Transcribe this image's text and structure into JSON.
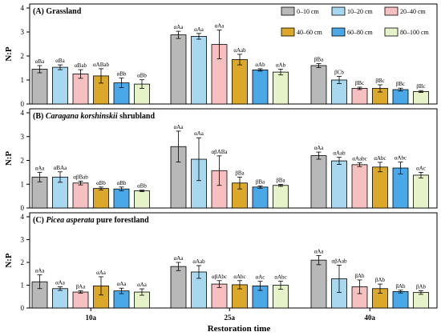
{
  "colors": {
    "0–10 cm": "#b8b8b8",
    "10–20 cm": "#a8d8f0",
    "20–40 cm": "#f7c0c0",
    "40–60 cm": "#dba829",
    "60–80 cm": "#4aa8e8",
    "80–100 cm": "#e6f2c8"
  },
  "chart_data": {
    "type": "bar",
    "xlabel": "Restoration time",
    "ylabel": "N:P",
    "categories": [
      "10a",
      "25a",
      "40a"
    ],
    "legend": [
      "0–10 cm",
      "10–20 cm",
      "20–40 cm",
      "40–60 cm",
      "60–80 cm",
      "80–100 cm"
    ],
    "legend_position": "top-right (panel A)",
    "ylim": [
      0,
      4
    ],
    "yticks": [
      0,
      1,
      2,
      3,
      4
    ],
    "grid": false,
    "panels": [
      {
        "label": "(A)",
        "title": "Grassland",
        "italic": "",
        "series": [
          {
            "name": "0–10 cm",
            "values": [
              1.45,
              2.88,
              1.6
            ],
            "errors": [
              0.15,
              0.15,
              0.08
            ],
            "labels": [
              "αBa",
              "αAa",
              "βBa"
            ]
          },
          {
            "name": "10–20 cm",
            "values": [
              1.53,
              2.82,
              1.0
            ],
            "errors": [
              0.1,
              0.12,
              0.15
            ],
            "labels": [
              "αBa",
              "αAa",
              "βCb"
            ]
          },
          {
            "name": "20–40 cm",
            "values": [
              1.25,
              2.48,
              0.65
            ],
            "errors": [
              0.18,
              0.6,
              0.05
            ],
            "labels": [
              "αBab",
              "αAa",
              "βBc"
            ]
          },
          {
            "name": "40–60 cm",
            "values": [
              1.17,
              1.85,
              0.65
            ],
            "errors": [
              0.3,
              0.22,
              0.15
            ],
            "labels": [
              "αABab",
              "αAab",
              "βBc"
            ]
          },
          {
            "name": "60–80 cm",
            "values": [
              0.88,
              1.42,
              0.6
            ],
            "errors": [
              0.2,
              0.05,
              0.06
            ],
            "labels": [
              "αBb",
              "αAb",
              "βBc"
            ]
          },
          {
            "name": "80–100 cm",
            "values": [
              0.83,
              1.33,
              0.52
            ],
            "errors": [
              0.18,
              0.12,
              0.04
            ],
            "labels": [
              "αBb",
              "αAb",
              "βBc"
            ]
          }
        ]
      },
      {
        "label": "(B)",
        "title": "shrubland",
        "italic": "Caragana korshinskii",
        "series": [
          {
            "name": "0–10 cm",
            "values": [
              1.3,
              2.58,
              2.2
            ],
            "errors": [
              0.2,
              0.65,
              0.15
            ],
            "labels": [
              "αAa",
              "αAa",
              "αAa"
            ]
          },
          {
            "name": "10–20 cm",
            "values": [
              1.3,
              2.05,
              1.98
            ],
            "errors": [
              0.22,
              0.9,
              0.15
            ],
            "labels": [
              "αBAa",
              "αAa",
              "αAab"
            ]
          },
          {
            "name": "20–40 cm",
            "values": [
              1.05,
              1.57,
              1.82
            ],
            "errors": [
              0.08,
              0.62,
              0.08
            ],
            "labels": [
              "αβBab",
              "αβABa",
              "αAabc"
            ]
          },
          {
            "name": "40–60 cm",
            "values": [
              0.82,
              1.05,
              1.72
            ],
            "errors": [
              0.06,
              0.25,
              0.2
            ],
            "labels": [
              "αBb",
              "βBa",
              "αAbc"
            ]
          },
          {
            "name": "60–80 cm",
            "values": [
              0.8,
              0.88,
              1.68
            ],
            "errors": [
              0.08,
              0.05,
              0.25
            ],
            "labels": [
              "αBb",
              "βBa",
              "αAbc"
            ]
          },
          {
            "name": "80–100 cm",
            "values": [
              0.72,
              0.95,
              1.38
            ],
            "errors": [
              0.03,
              0.04,
              0.12
            ],
            "labels": [
              "αBb",
              "βBa",
              "αAc"
            ]
          }
        ]
      },
      {
        "label": "(C)",
        "title": "pure forestland",
        "italic": "Picea asperata",
        "series": [
          {
            "name": "0–10 cm",
            "values": [
              1.15,
              1.82,
              2.1
            ],
            "errors": [
              0.3,
              0.18,
              0.2
            ],
            "labels": [
              "αAa",
              "αAa",
              "αAa"
            ]
          },
          {
            "name": "10–20 cm",
            "values": [
              0.85,
              1.58,
              1.28
            ],
            "errors": [
              0.08,
              0.28,
              0.6
            ],
            "labels": [
              "αAa",
              "αAab",
              "αβAab"
            ]
          },
          {
            "name": "20–40 cm",
            "values": [
              0.7,
              1.05,
              0.93
            ],
            "errors": [
              0.05,
              0.15,
              0.3
            ],
            "labels": [
              "βAa",
              "αβAbc",
              "βAb"
            ]
          },
          {
            "name": "40–60 cm",
            "values": [
              0.97,
              1.02,
              0.85
            ],
            "errors": [
              0.4,
              0.18,
              0.2
            ],
            "labels": [
              "αAa",
              "αAbc",
              "βAb"
            ]
          },
          {
            "name": "60–80 cm",
            "values": [
              0.75,
              0.97,
              0.72
            ],
            "errors": [
              0.12,
              0.2,
              0.06
            ],
            "labels": [
              "αAa",
              "αAc",
              "βAb"
            ]
          },
          {
            "name": "80–100 cm",
            "values": [
              0.7,
              1.0,
              0.68
            ],
            "errors": [
              0.14,
              0.18,
              0.08
            ],
            "labels": [
              "αAa",
              "αAbc",
              "βAb"
            ]
          }
        ]
      }
    ]
  }
}
